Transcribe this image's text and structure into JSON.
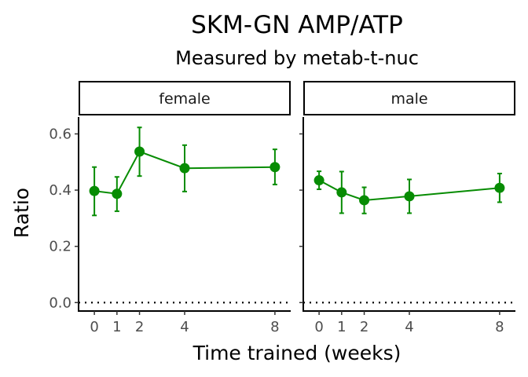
{
  "chart_data": {
    "type": "line",
    "title": "SKM-GN AMP/ATP",
    "subtitle": "Measured by metab-t-nuc",
    "xlabel": "Time trained (weeks)",
    "ylabel": "Ratio",
    "ylim": [
      -0.03,
      0.66
    ],
    "yticks": [
      "0.0",
      "0.2",
      "0.4",
      "0.6"
    ],
    "xticks": [
      "0",
      "1",
      "2",
      "4",
      "8"
    ],
    "reference_line": 0,
    "color": "#078c03",
    "grid": false,
    "panels": [
      {
        "label": "female",
        "x": [
          0,
          1,
          2,
          4,
          8
        ],
        "y": [
          0.397,
          0.387,
          0.537,
          0.478,
          0.482
        ],
        "ymin": [
          0.31,
          0.325,
          0.45,
          0.395,
          0.42
        ],
        "ymax": [
          0.482,
          0.447,
          0.623,
          0.56,
          0.545
        ]
      },
      {
        "label": "male",
        "x": [
          0,
          1,
          2,
          4,
          8
        ],
        "y": [
          0.435,
          0.392,
          0.364,
          0.378,
          0.408
        ],
        "ymin": [
          0.403,
          0.318,
          0.317,
          0.318,
          0.357
        ],
        "ymax": [
          0.467,
          0.466,
          0.41,
          0.438,
          0.459
        ]
      }
    ]
  }
}
